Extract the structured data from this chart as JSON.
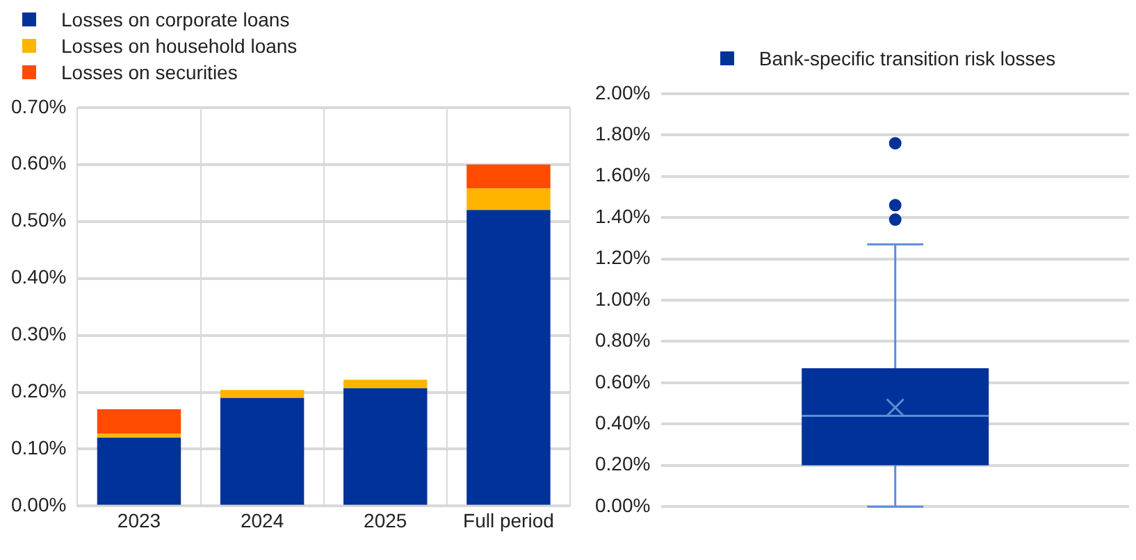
{
  "chart_data": [
    {
      "type": "bar",
      "stacked": true,
      "categories": [
        "2023",
        "2024",
        "2025",
        "Full period"
      ],
      "series": [
        {
          "name": "Losses on corporate loans",
          "color": "#003299",
          "values": [
            0.12,
            0.19,
            0.207,
            0.52
          ]
        },
        {
          "name": "Losses on household loans",
          "color": "#ffb400",
          "values": [
            0.007,
            0.014,
            0.015,
            0.038
          ]
        },
        {
          "name": "Losses on securities",
          "color": "#ff4b00",
          "values": [
            0.043,
            null,
            null,
            0.042
          ]
        }
      ],
      "ylim": [
        0,
        0.7
      ],
      "yticks": [
        {
          "value": 0,
          "label": "0.00%"
        },
        {
          "value": 0.1,
          "label": "0.10%"
        },
        {
          "value": 0.2,
          "label": "0.20%"
        },
        {
          "value": 0.3,
          "label": "0.30%"
        },
        {
          "value": 0.4,
          "label": "0.40%"
        },
        {
          "value": 0.5,
          "label": "0.50%"
        },
        {
          "value": 0.6,
          "label": "0.60%"
        },
        {
          "value": 0.7,
          "label": "0.70%"
        }
      ],
      "grid": true,
      "legend": "top left"
    },
    {
      "type": "box",
      "categories": [
        null
      ],
      "series": [
        {
          "name": "Bank-specific transition risk losses",
          "color": "#003299",
          "boxes": [
            {
              "low": 0,
              "q1": 0.2,
              "median": 0.44,
              "q3": 0.67,
              "high": 1.27,
              "mean": 0.48,
              "outliers": [
                1.76,
                1.46,
                1.39
              ]
            }
          ]
        }
      ],
      "ylim": [
        0,
        2
      ],
      "yticks": [
        {
          "value": 0,
          "label": "0.00%"
        },
        {
          "value": 0.2,
          "label": "0.20%"
        },
        {
          "value": 0.4,
          "label": "0.40%"
        },
        {
          "value": 0.6,
          "label": "0.60%"
        },
        {
          "value": 0.8,
          "label": "0.80%"
        },
        {
          "value": 1,
          "label": "1.00%"
        },
        {
          "value": 1.2,
          "label": "1.20%"
        },
        {
          "value": 1.4,
          "label": "1.40%"
        },
        {
          "value": 1.6,
          "label": "1.60%"
        },
        {
          "value": 1.8,
          "label": "1.80%"
        },
        {
          "value": 2,
          "label": "2.00%"
        }
      ],
      "grid": "y",
      "legend": "top",
      "tick_labels": "y"
    }
  ]
}
